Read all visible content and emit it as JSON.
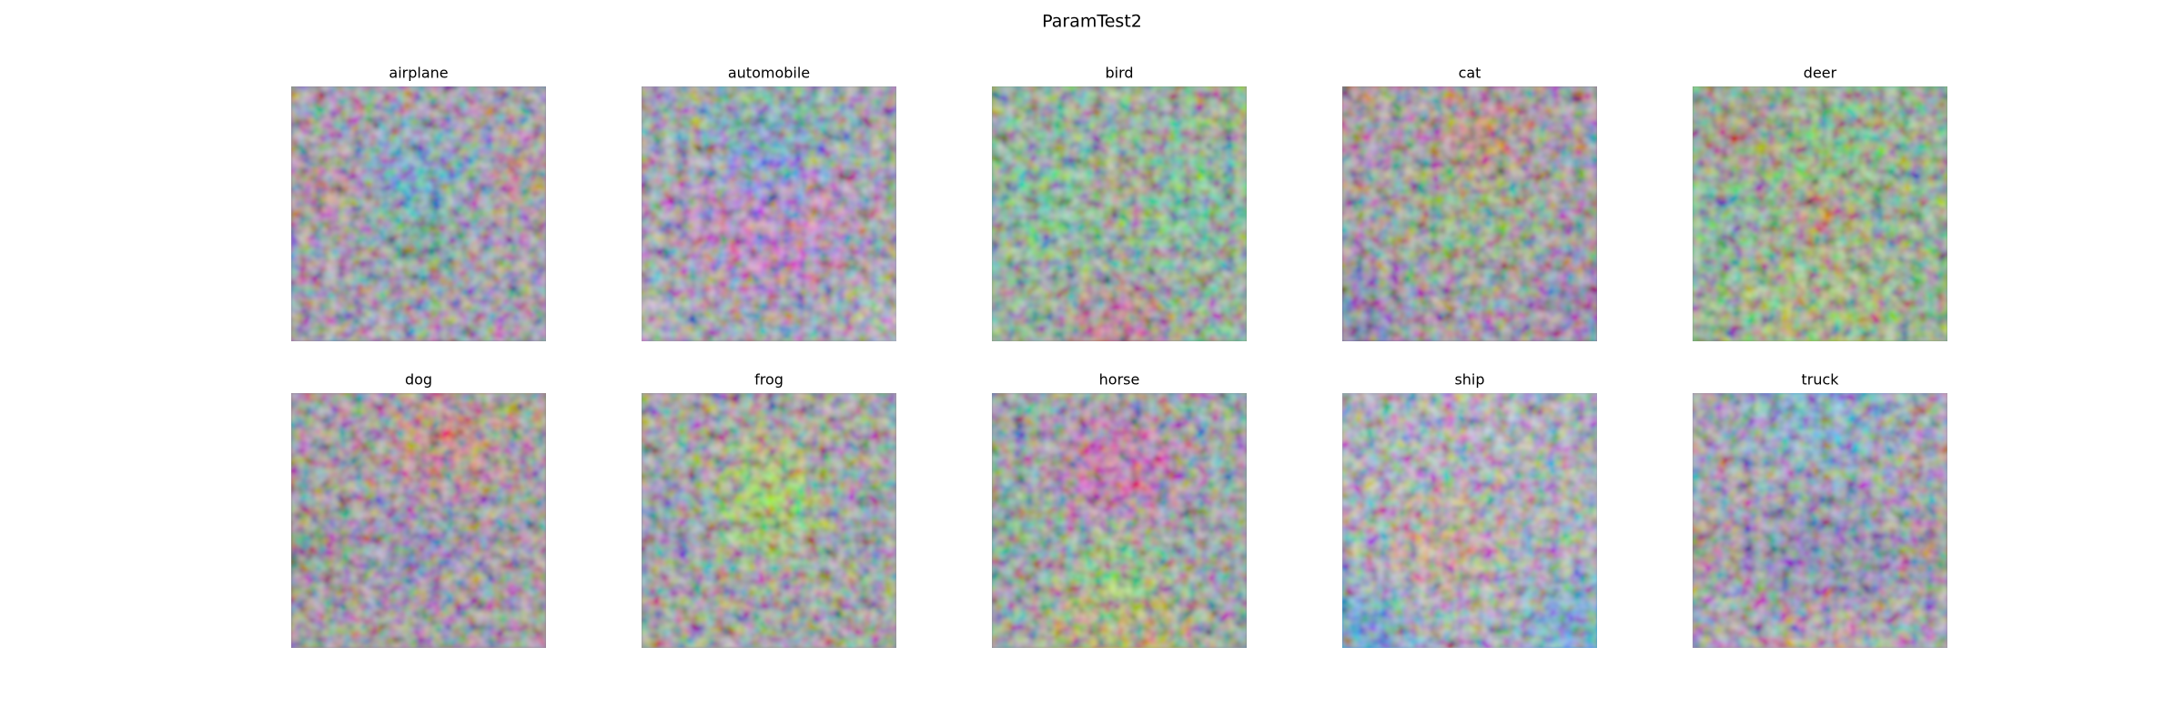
{
  "title": "ParamTest2",
  "panels": [
    {
      "label": "airplane"
    },
    {
      "label": "automobile"
    },
    {
      "label": "bird"
    },
    {
      "label": "cat"
    },
    {
      "label": "deer"
    },
    {
      "label": "dog"
    },
    {
      "label": "frog"
    },
    {
      "label": "horse"
    },
    {
      "label": "ship"
    },
    {
      "label": "truck"
    }
  ]
}
